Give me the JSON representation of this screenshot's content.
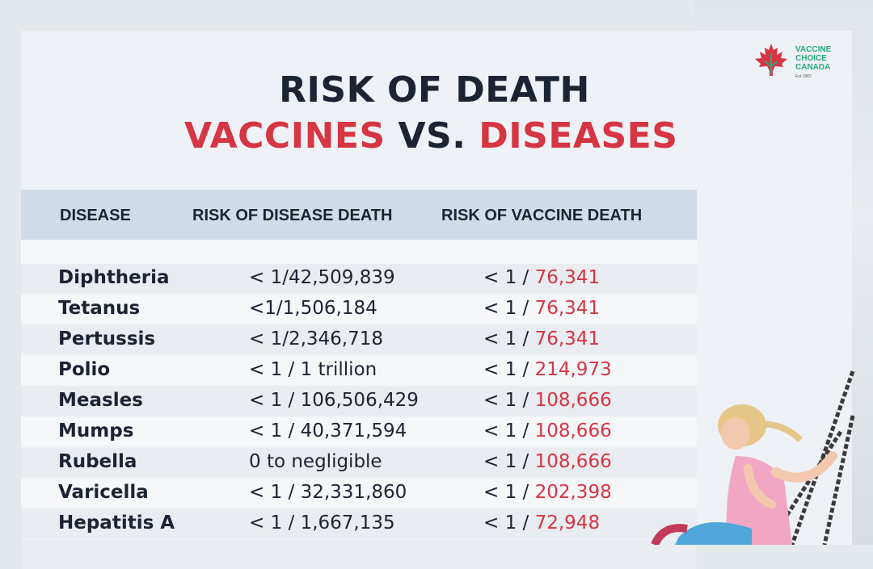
{
  "title": {
    "line1": "RISK OF DEATH",
    "line2_part1": "VACCINES",
    "line2_part2": "VS.",
    "line2_part3": "DISEASES"
  },
  "logo": {
    "line1": "VACCINE",
    "line2": "CHOICE",
    "line3": "CANADA",
    "est": "Est 1982",
    "icon": "maple-leaf-icon"
  },
  "table": {
    "headers": [
      "DISEASE",
      "RISK OF DISEASE DEATH",
      "RISK OF VACCINE DEATH"
    ],
    "rows": [
      {
        "disease": "Diphtheria",
        "disease_risk": "< 1/42,509,839",
        "vaccine_prefix": "< 1 / ",
        "vaccine_value": "76,341"
      },
      {
        "disease": "Tetanus",
        "disease_risk": "<1/1,506,184",
        "vaccine_prefix": "< 1 / ",
        "vaccine_value": "76,341"
      },
      {
        "disease": "Pertussis",
        "disease_risk": "< 1/2,346,718",
        "vaccine_prefix": "< 1 / ",
        "vaccine_value": "76,341"
      },
      {
        "disease": "Polio",
        "disease_risk": "< 1 / 1 trillion",
        "vaccine_prefix": "< 1 / ",
        "vaccine_value": "214,973"
      },
      {
        "disease": "Measles",
        "disease_risk": "< 1 / 106,506,429",
        "vaccine_prefix": "< 1 / ",
        "vaccine_value": "108,666"
      },
      {
        "disease": "Mumps",
        "disease_risk": "< 1 / 40,371,594",
        "vaccine_prefix": "< 1 / ",
        "vaccine_value": "108,666"
      },
      {
        "disease": "Rubella",
        "disease_risk": "0 to negligible",
        "vaccine_prefix": "< 1 / ",
        "vaccine_value": "108,666"
      },
      {
        "disease": "Varicella",
        "disease_risk": "< 1 / 32,331,860",
        "vaccine_prefix": "< 1 / ",
        "vaccine_value": "202,398"
      },
      {
        "disease": "Hepatitis A",
        "disease_risk": "< 1 / 1,667,135",
        "vaccine_prefix": "< 1 / ",
        "vaccine_value": "72,948"
      }
    ]
  },
  "colors": {
    "accent_red": "#d63543",
    "text_dark": "#1c2333",
    "header_bg": "#d2dce8",
    "logo_green": "#2aa87a"
  }
}
